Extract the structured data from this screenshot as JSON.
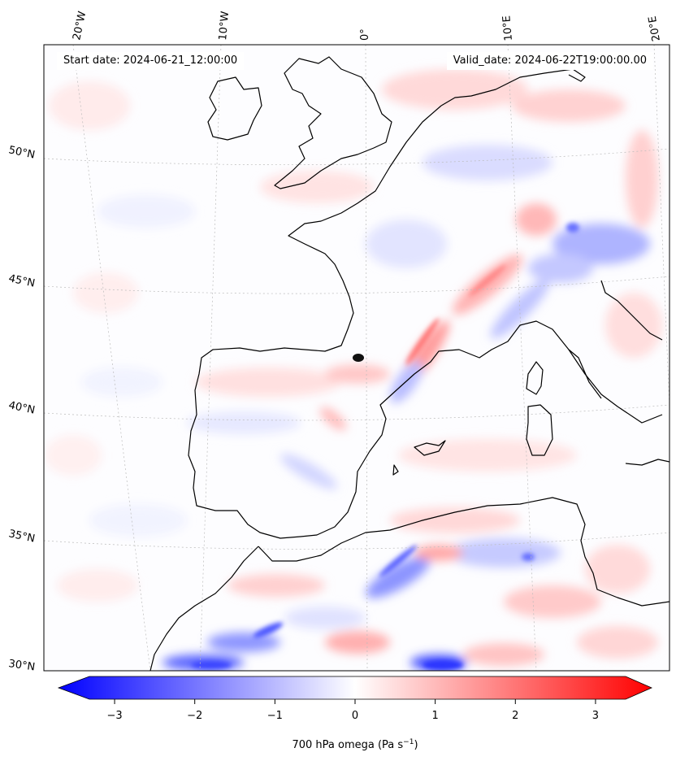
{
  "header": {
    "start_date": "Start date: 2024-06-21_12:00:00",
    "valid_date": "Valid_date: 2024-06-22T19:00:00.00"
  },
  "map": {
    "lon_labels": [
      "20°W",
      "10°W",
      "0°",
      "10°E",
      "20°E"
    ],
    "lat_labels": [
      "50°N",
      "45°N",
      "40°N",
      "35°N",
      "30°N"
    ],
    "colors": {
      "negative": "#0000ff",
      "positive": "#ff0000",
      "neutral": "#ffffff",
      "coast": "#000000",
      "grid": "#bbbbbb"
    }
  },
  "colorbar": {
    "ticks": [
      "−3",
      "−2",
      "−1",
      "0",
      "1",
      "2",
      "3"
    ],
    "range": [
      -3.7,
      3.7
    ],
    "label_main": "700 hPa omega (Pa s",
    "label_sup": "−1",
    "label_end": ")"
  }
}
